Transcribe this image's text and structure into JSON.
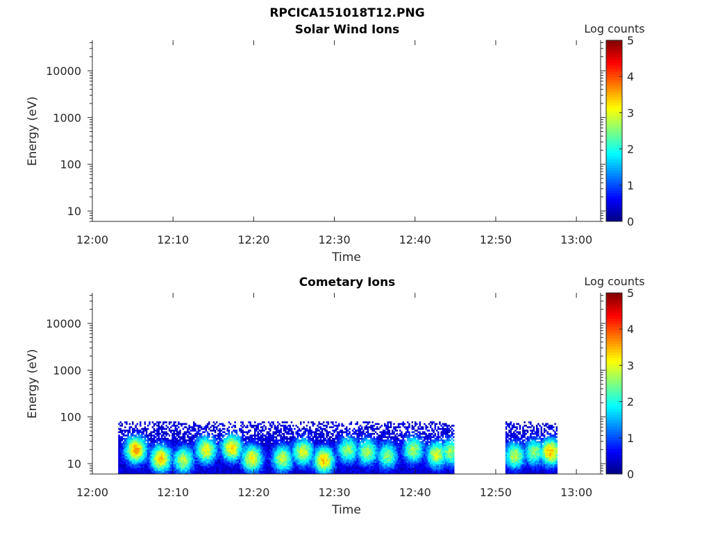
{
  "figure": {
    "title": "RPCICA151018T12.PNG"
  },
  "colorbar": {
    "label": "Log counts",
    "ticks": [
      0,
      1,
      2,
      3,
      4,
      5
    ],
    "colormap": [
      "#00007f",
      "#0000ff",
      "#007fff",
      "#00ffff",
      "#7fff7f",
      "#ffff00",
      "#ff7f00",
      "#ff0000",
      "#7f0000"
    ]
  },
  "chart_data": [
    {
      "type": "heatmap",
      "title": "Solar Wind Ions",
      "xlabel": "Time",
      "ylabel": "Energy (eV)",
      "x_ticks": [
        "12:00",
        "12:10",
        "12:20",
        "12:30",
        "12:40",
        "12:50",
        "13:00"
      ],
      "xlim_minutes": [
        0,
        63
      ],
      "y_scale": "log",
      "ylim": [
        6,
        45000
      ],
      "y_ticks": [
        10,
        100,
        1000,
        10000
      ],
      "clim": [
        0,
        5
      ],
      "intervals": []
    },
    {
      "type": "heatmap",
      "title": "Cometary Ions",
      "xlabel": "Time",
      "ylabel": "Energy (eV)",
      "x_ticks": [
        "12:00",
        "12:10",
        "12:20",
        "12:30",
        "12:40",
        "12:50",
        "13:00"
      ],
      "xlim_minutes": [
        0,
        63
      ],
      "y_scale": "log",
      "ylim": [
        6,
        45000
      ],
      "y_ticks": [
        10,
        100,
        1000,
        10000
      ],
      "clim": [
        0,
        5
      ],
      "energy_range_eV": [
        6,
        80
      ],
      "intervals": [
        {
          "start_min": 3.2,
          "end_min": 44.8
        },
        {
          "start_min": 51.2,
          "end_min": 57.6
        }
      ],
      "peaks": [
        {
          "t_min": 5.3,
          "E_eV": 20,
          "level": 3.6
        },
        {
          "t_min": 8.4,
          "E_eV": 13,
          "level": 3.4
        },
        {
          "t_min": 11.2,
          "E_eV": 12,
          "level": 2.8
        },
        {
          "t_min": 14.0,
          "E_eV": 20,
          "level": 3.1
        },
        {
          "t_min": 17.2,
          "E_eV": 22,
          "level": 3.3
        },
        {
          "t_min": 19.7,
          "E_eV": 13,
          "level": 3.2
        },
        {
          "t_min": 23.5,
          "E_eV": 13,
          "level": 2.9
        },
        {
          "t_min": 26.0,
          "E_eV": 18,
          "level": 3.0
        },
        {
          "t_min": 28.6,
          "E_eV": 12,
          "level": 3.4
        },
        {
          "t_min": 31.6,
          "E_eV": 20,
          "level": 2.6
        },
        {
          "t_min": 34.0,
          "E_eV": 18,
          "level": 2.7
        },
        {
          "t_min": 36.5,
          "E_eV": 15,
          "level": 2.5
        },
        {
          "t_min": 39.7,
          "E_eV": 20,
          "level": 2.7
        },
        {
          "t_min": 42.6,
          "E_eV": 16,
          "level": 2.9
        },
        {
          "t_min": 44.3,
          "E_eV": 18,
          "level": 2.7
        },
        {
          "t_min": 52.3,
          "E_eV": 15,
          "level": 2.8
        },
        {
          "t_min": 54.7,
          "E_eV": 18,
          "level": 2.6
        },
        {
          "t_min": 56.7,
          "E_eV": 18,
          "level": 3.5
        }
      ]
    }
  ]
}
